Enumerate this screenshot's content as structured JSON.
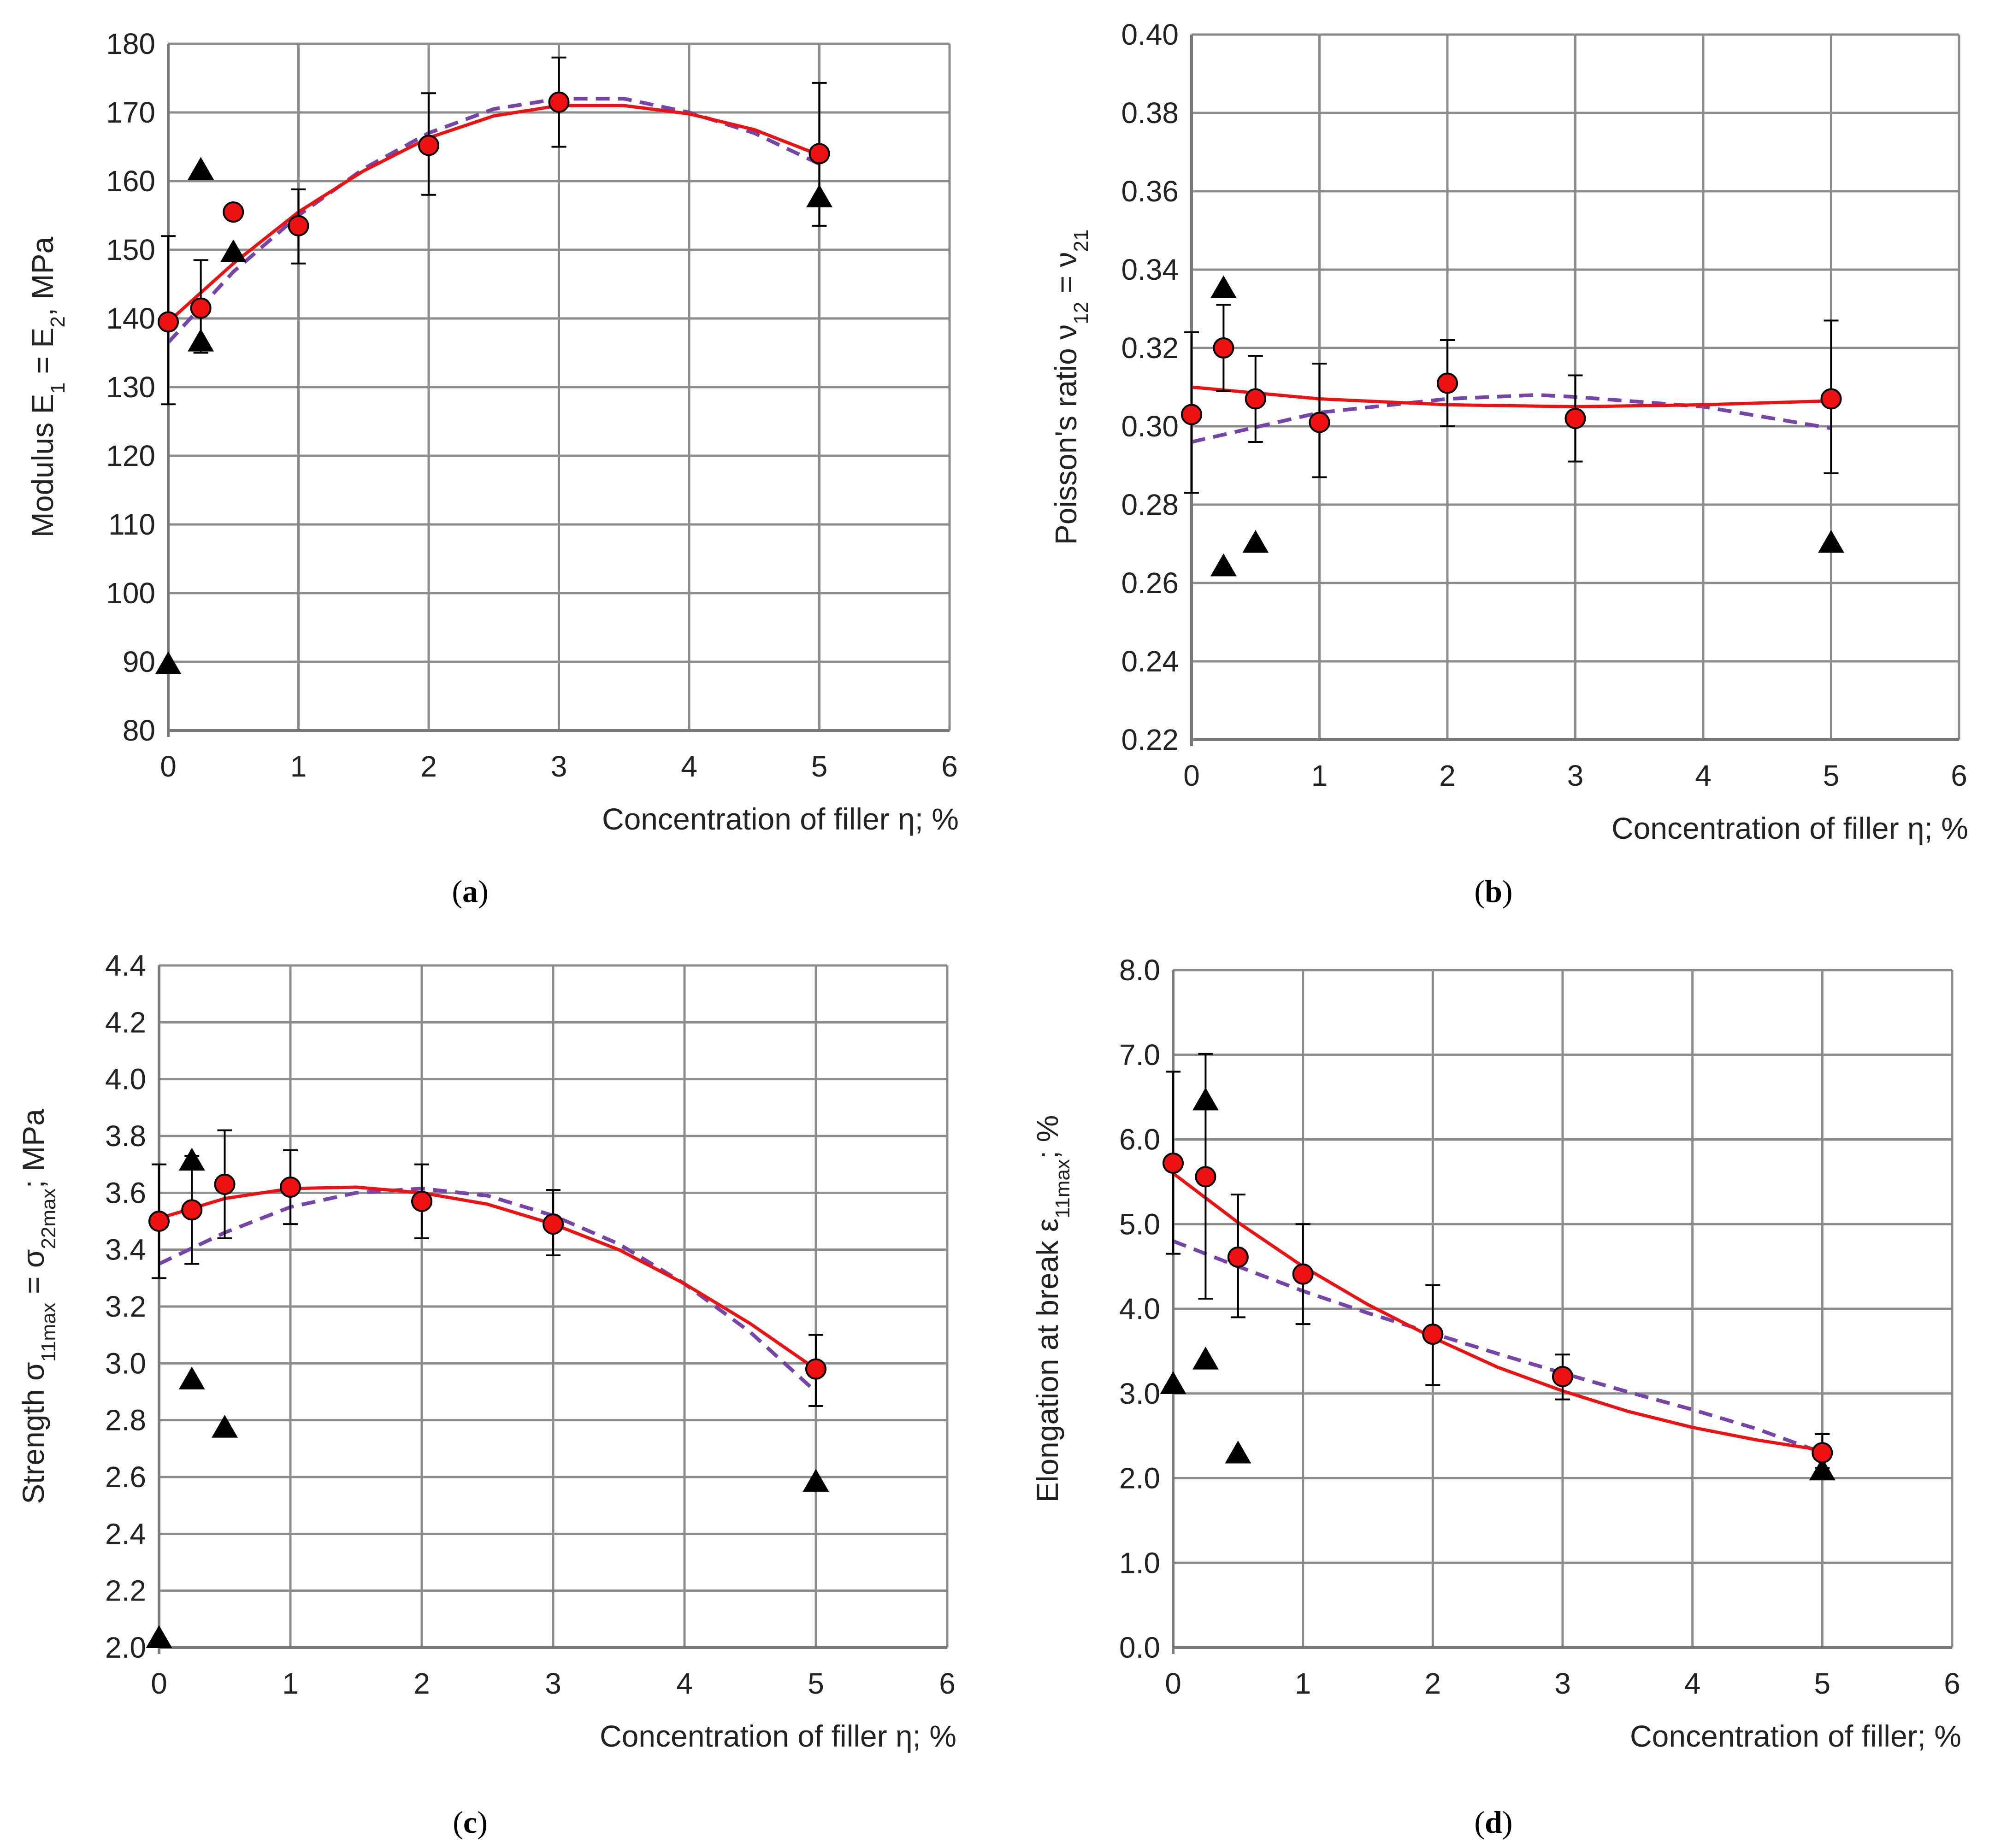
{
  "figure_captions": [
    "(a)",
    "(b)",
    "(c)",
    "(d)"
  ],
  "caption_letters": [
    "a",
    "b",
    "c",
    "d"
  ],
  "colors": {
    "experimental_points": "#ee1111",
    "solid_fit": "#ee1111",
    "dashed_fit": "#7744aa",
    "triangles": "#000000",
    "grid": "#8c8c8c"
  },
  "chart_data": [
    {
      "type": "scatter",
      "panel": "a",
      "ylabel": "Modulus  E1 = E2, MPa",
      "ylabel_parts": {
        "pre": "Modulus  E",
        "sub1": "1",
        "mid": " = E",
        "sub2": "2",
        "post": ", MPa"
      },
      "xlabel": "Concentration of filler η; %",
      "xlim": [
        0,
        6
      ],
      "ylim": [
        80,
        180
      ],
      "xticks": [
        0,
        1,
        2,
        3,
        4,
        5,
        6
      ],
      "yticks": [
        80,
        90,
        100,
        110,
        120,
        130,
        140,
        150,
        160,
        170,
        180
      ],
      "ytick_labels": [
        "80",
        "90",
        "100",
        "110",
        "120",
        "130",
        "140",
        "150",
        "160",
        "170",
        "180"
      ],
      "grid": true,
      "circles": {
        "x": [
          0,
          0.25,
          0.5,
          1,
          2,
          3,
          5
        ],
        "y": [
          139.5,
          141.5,
          155.5,
          153.5,
          165.2,
          171.5,
          164
        ],
        "err_low": [
          127.5,
          135,
          null,
          148,
          158,
          165,
          153.5
        ],
        "err_high": [
          152,
          148.5,
          null,
          158.8,
          172.8,
          178,
          174.3
        ]
      },
      "triangles": {
        "x": [
          0,
          0.25,
          0.25,
          0.5,
          5
        ],
        "y": [
          89.5,
          136.5,
          161.5,
          149.5,
          157.5
        ]
      },
      "solid_curve": {
        "x": [
          0,
          0.5,
          1,
          1.5,
          2,
          2.5,
          3,
          3.5,
          4,
          4.5,
          5
        ],
        "y": [
          139.5,
          148,
          155.5,
          161.5,
          166.3,
          169.5,
          171,
          171,
          169.8,
          167.5,
          163.8
        ]
      },
      "dashed_curve": {
        "x": [
          0,
          0.5,
          1,
          1.5,
          2,
          2.5,
          3,
          3.5,
          4,
          4.5,
          5
        ],
        "y": [
          136.5,
          146.8,
          155,
          161.8,
          167,
          170.5,
          172,
          172,
          170,
          167,
          162.5
        ]
      }
    },
    {
      "type": "scatter",
      "panel": "b",
      "ylabel": "Poisson's ratio ν12 = ν21",
      "ylabel_parts": {
        "pre": "Poisson's ratio ν",
        "sub1": "12",
        "mid": " = ν",
        "sub2": "21",
        "post": ""
      },
      "xlabel": "Concentration of filler η; %",
      "xlim": [
        0,
        6
      ],
      "ylim": [
        0.22,
        0.4
      ],
      "xticks": [
        0,
        1,
        2,
        3,
        4,
        5,
        6
      ],
      "yticks": [
        0.22,
        0.24,
        0.26,
        0.28,
        0.3,
        0.32,
        0.34,
        0.36,
        0.38,
        0.4
      ],
      "ytick_labels": [
        "0.22",
        "0.24",
        "0.26",
        "0.28",
        "0.30",
        "0.32",
        "0.34",
        "0.36",
        "0.38",
        "0.40"
      ],
      "grid": true,
      "circles": {
        "x": [
          0,
          0.25,
          0.5,
          1,
          2,
          3,
          5
        ],
        "y": [
          0.303,
          0.32,
          0.307,
          0.301,
          0.311,
          0.302,
          0.307
        ],
        "err_low": [
          0.283,
          0.309,
          0.296,
          0.287,
          0.3,
          0.291,
          0.288
        ],
        "err_high": [
          0.324,
          0.331,
          0.318,
          0.316,
          0.322,
          0.313,
          0.327
        ]
      },
      "triangles": {
        "x": [
          0.25,
          0.25,
          0.5,
          5
        ],
        "y": [
          0.335,
          0.264,
          0.27,
          0.27
        ]
      },
      "solid_curve": {
        "x": [
          0,
          1,
          2,
          3,
          4,
          5
        ],
        "y": [
          0.31,
          0.307,
          0.3055,
          0.305,
          0.3055,
          0.3065
        ]
      },
      "dashed_curve": {
        "x": [
          0,
          1,
          2,
          2.7,
          3,
          4,
          5
        ],
        "y": [
          0.296,
          0.3035,
          0.307,
          0.308,
          0.3075,
          0.305,
          0.2995
        ]
      }
    },
    {
      "type": "scatter",
      "panel": "c",
      "ylabel": "Strength σ11max = σ22max; MPa",
      "ylabel_parts": {
        "pre": "Strength σ",
        "sub1": "11max",
        "mid": " = σ",
        "sub2": "22max",
        "post": "; MPa"
      },
      "xlabel": "Concentration of filler η; %",
      "xlim": [
        0,
        6
      ],
      "ylim": [
        2.0,
        4.4
      ],
      "xticks": [
        0,
        1,
        2,
        3,
        4,
        5,
        6
      ],
      "yticks": [
        2.0,
        2.2,
        2.4,
        2.6,
        2.8,
        3.0,
        3.2,
        3.4,
        3.6,
        3.8,
        4.0,
        4.2,
        4.4
      ],
      "ytick_labels": [
        "2.0",
        "2.2",
        "2.4",
        "2.6",
        "2.8",
        "3.0",
        "3.2",
        "3.4",
        "3.6",
        "3.8",
        "4.0",
        "4.2",
        "4.4"
      ],
      "grid": true,
      "circles": {
        "x": [
          0,
          0.25,
          0.5,
          1,
          2,
          3,
          5
        ],
        "y": [
          3.5,
          3.54,
          3.63,
          3.62,
          3.57,
          3.49,
          2.98
        ],
        "err_low": [
          3.3,
          3.35,
          3.44,
          3.49,
          3.44,
          3.38,
          2.85
        ],
        "err_high": [
          3.7,
          3.73,
          3.82,
          3.75,
          3.7,
          3.61,
          3.1
        ]
      },
      "triangles": {
        "x": [
          0,
          0.25,
          0.25,
          0.5,
          5
        ],
        "y": [
          2.03,
          3.71,
          2.94,
          2.77,
          2.58
        ]
      },
      "solid_curve": {
        "x": [
          0,
          0.5,
          1,
          1.5,
          2,
          2.5,
          3,
          3.5,
          4,
          4.5,
          5
        ],
        "y": [
          3.51,
          3.58,
          3.615,
          3.62,
          3.6,
          3.56,
          3.49,
          3.4,
          3.28,
          3.14,
          2.98
        ]
      },
      "dashed_curve": {
        "x": [
          0,
          0.5,
          1,
          1.5,
          2,
          2.5,
          3,
          3.5,
          4,
          4.5,
          5
        ],
        "y": [
          3.35,
          3.46,
          3.55,
          3.6,
          3.615,
          3.59,
          3.52,
          3.42,
          3.28,
          3.11,
          2.9
        ]
      }
    },
    {
      "type": "scatter",
      "panel": "d",
      "ylabel": "Elongation at break ε11max; %",
      "ylabel_parts": {
        "pre": "Elongation at break ε",
        "sub1": "11max",
        "mid": "",
        "sub2": "",
        "post": "; %"
      },
      "xlabel": "Concentration of filler; %",
      "xlim": [
        0,
        6
      ],
      "ylim": [
        0.0,
        8.0
      ],
      "xticks": [
        0,
        1,
        2,
        3,
        4,
        5,
        6
      ],
      "yticks": [
        0,
        1,
        2,
        3,
        4,
        5,
        6,
        7,
        8
      ],
      "ytick_labels": [
        "0.0",
        "1.0",
        "2.0",
        "3.0",
        "4.0",
        "5.0",
        "6.0",
        "7.0",
        "8.0"
      ],
      "grid": true,
      "circles": {
        "x": [
          0,
          0.25,
          0.5,
          1,
          2,
          3,
          5
        ],
        "y": [
          5.72,
          5.56,
          4.61,
          4.41,
          3.7,
          3.2,
          2.3
        ],
        "err_low": [
          4.65,
          4.12,
          3.9,
          3.82,
          3.1,
          2.93,
          2.12
        ],
        "err_high": [
          6.8,
          7.01,
          5.35,
          5.0,
          4.28,
          3.46,
          2.52
        ]
      },
      "triangles": {
        "x": [
          0,
          0.25,
          0.25,
          0.5,
          5
        ],
        "y": [
          3.1,
          3.39,
          6.45,
          2.28,
          2.08
        ]
      },
      "solid_curve": {
        "x": [
          0,
          0.5,
          1,
          1.5,
          2,
          2.5,
          3,
          3.5,
          4,
          4.5,
          5
        ],
        "y": [
          5.6,
          5.02,
          4.5,
          4.05,
          3.66,
          3.31,
          3.03,
          2.79,
          2.6,
          2.45,
          2.33
        ]
      },
      "dashed_curve": {
        "x": [
          0,
          0.5,
          1,
          1.5,
          2,
          2.5,
          3,
          3.5,
          4,
          4.5,
          5
        ],
        "y": [
          4.8,
          4.5,
          4.21,
          3.95,
          3.71,
          3.47,
          3.24,
          3.02,
          2.81,
          2.58,
          2.3
        ]
      }
    }
  ]
}
